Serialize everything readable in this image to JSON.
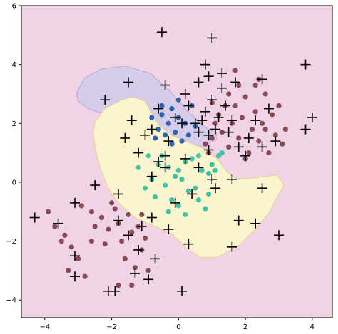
{
  "chart_data": {
    "type": "scatter",
    "title": "",
    "xlabel": "",
    "ylabel": "",
    "xlim": [
      -4.7,
      4.6
    ],
    "ylim": [
      -4.6,
      6.0
    ],
    "grid": false,
    "legend": "none",
    "x_ticks": [
      -4,
      -2,
      0,
      2,
      4
    ],
    "y_ticks": [
      -4,
      -2,
      0,
      2,
      4,
      6
    ],
    "x_tick_labels": [
      "−4",
      "−2",
      "0",
      "2",
      "4"
    ],
    "y_tick_labels": [
      "−4",
      "−2",
      "0",
      "2",
      "4",
      "6"
    ],
    "colors": {
      "background_region": "#f0d4e6",
      "purple_region": "#d6cdea",
      "yellow_region": "#fbf5cf",
      "maroon_points": "#8a4a56",
      "blue_points": "#2f63b0",
      "teal_points": "#3ec4a6",
      "cross_marker": "#000000"
    },
    "regions": [
      {
        "name": "purple-region",
        "polygon": [
          [
            -3.05,
            3.05
          ],
          [
            -2.8,
            3.55
          ],
          [
            -2.3,
            3.85
          ],
          [
            -1.6,
            3.95
          ],
          [
            -0.85,
            3.7
          ],
          [
            -0.3,
            3.15
          ],
          [
            0.2,
            2.5
          ],
          [
            0.75,
            1.9
          ],
          [
            1.15,
            1.65
          ],
          [
            1.15,
            1.45
          ],
          [
            0.75,
            1.25
          ],
          [
            0.3,
            1.1
          ],
          [
            -0.2,
            1.15
          ],
          [
            -0.65,
            1.4
          ],
          [
            -0.95,
            1.75
          ],
          [
            -1.3,
            2.05
          ],
          [
            -1.7,
            2.25
          ],
          [
            -2.2,
            2.3
          ],
          [
            -2.7,
            2.5
          ],
          [
            -3.0,
            2.75
          ]
        ]
      },
      {
        "name": "yellow-region",
        "polygon": [
          [
            -2.5,
            2.05
          ],
          [
            -2.2,
            2.5
          ],
          [
            -1.7,
            2.8
          ],
          [
            -1.35,
            2.9
          ],
          [
            -1.0,
            2.75
          ],
          [
            -0.8,
            2.35
          ],
          [
            -0.6,
            1.95
          ],
          [
            -0.2,
            1.6
          ],
          [
            0.3,
            1.35
          ],
          [
            0.75,
            1.15
          ],
          [
            1.15,
            0.8
          ],
          [
            1.45,
            0.35
          ],
          [
            1.75,
            0.1
          ],
          [
            2.3,
            0.15
          ],
          [
            2.95,
            0.25
          ],
          [
            3.15,
            -0.1
          ],
          [
            2.95,
            -0.5
          ],
          [
            2.7,
            -1.05
          ],
          [
            2.3,
            -1.6
          ],
          [
            1.8,
            -2.15
          ],
          [
            1.15,
            -2.55
          ],
          [
            0.65,
            -2.55
          ],
          [
            0.2,
            -2.2
          ],
          [
            -0.2,
            -1.75
          ],
          [
            -0.8,
            -1.45
          ],
          [
            -1.3,
            -1.2
          ],
          [
            -1.75,
            -0.75
          ],
          [
            -2.1,
            -0.2
          ],
          [
            -2.35,
            0.5
          ],
          [
            -2.5,
            1.2
          ],
          [
            -2.55,
            1.7
          ]
        ]
      }
    ],
    "series": [
      {
        "marker": "circle",
        "color": "#8a4a56",
        "points": [
          [
            -3.9,
            -1.0
          ],
          [
            -3.7,
            -1.5
          ],
          [
            -3.4,
            -1.8
          ],
          [
            -3.2,
            -2.2
          ],
          [
            -3.0,
            -2.6
          ],
          [
            -2.8,
            -3.2
          ],
          [
            -2.6,
            -2.0
          ],
          [
            -2.5,
            -1.5
          ],
          [
            -2.3,
            -1.2
          ],
          [
            -2.1,
            -1.6
          ],
          [
            -1.9,
            -0.9
          ],
          [
            -1.8,
            -1.4
          ],
          [
            -1.7,
            -2.0
          ],
          [
            -1.6,
            -2.6
          ],
          [
            -1.5,
            -1.1
          ],
          [
            -1.4,
            -1.7
          ],
          [
            -1.3,
            -2.9
          ],
          [
            -1.2,
            -1.5
          ],
          [
            -1.1,
            -2.3
          ],
          [
            -1.0,
            -1.9
          ],
          [
            -0.9,
            -3.0
          ],
          [
            -2.0,
            -0.7
          ],
          [
            -2.2,
            -2.1
          ],
          [
            -1.8,
            -3.5
          ],
          [
            -3.3,
            -3.0
          ],
          [
            -2.9,
            -0.8
          ],
          [
            -3.5,
            -2.0
          ],
          [
            -1.1,
            -1.1
          ],
          [
            -2.6,
            -1.0
          ],
          [
            -1.4,
            -3.5
          ],
          [
            0.9,
            1.0
          ],
          [
            1.0,
            1.5
          ],
          [
            1.1,
            2.0
          ],
          [
            1.2,
            2.3
          ],
          [
            1.3,
            1.7
          ],
          [
            1.4,
            2.6
          ],
          [
            1.5,
            1.2
          ],
          [
            1.6,
            2.0
          ],
          [
            1.7,
            2.6
          ],
          [
            1.8,
            1.5
          ],
          [
            1.9,
            2.2
          ],
          [
            2.0,
            2.9
          ],
          [
            2.1,
            1.0
          ],
          [
            2.2,
            1.8
          ],
          [
            2.3,
            2.4
          ],
          [
            2.4,
            1.4
          ],
          [
            2.5,
            2.0
          ],
          [
            2.6,
            3.0
          ],
          [
            2.7,
            1.0
          ],
          [
            2.8,
            2.3
          ],
          [
            2.9,
            1.6
          ],
          [
            3.0,
            2.6
          ],
          [
            2.3,
            3.3
          ],
          [
            1.5,
            3.0
          ],
          [
            1.8,
            3.3
          ],
          [
            2.0,
            0.8
          ],
          [
            1.2,
            0.9
          ],
          [
            0.8,
            1.3
          ],
          [
            2.6,
            1.8
          ],
          [
            3.2,
            1.8
          ],
          [
            1.0,
            2.7
          ],
          [
            1.7,
            3.8
          ],
          [
            2.4,
            3.5
          ],
          [
            3.1,
            1.3
          ]
        ]
      },
      {
        "marker": "circle",
        "color": "#2f63b0",
        "points": [
          [
            -0.8,
            2.2
          ],
          [
            -0.6,
            1.8
          ],
          [
            -0.5,
            2.3
          ],
          [
            -0.4,
            1.6
          ],
          [
            -0.3,
            2.0
          ],
          [
            -0.2,
            2.5
          ],
          [
            -0.1,
            1.7
          ],
          [
            0.0,
            2.2
          ],
          [
            0.1,
            1.4
          ],
          [
            0.2,
            2.0
          ],
          [
            0.3,
            1.6
          ],
          [
            0.4,
            2.6
          ],
          [
            -0.7,
            1.5
          ],
          [
            -0.2,
            1.3
          ],
          [
            0.0,
            2.8
          ],
          [
            -0.5,
            2.6
          ],
          [
            0.5,
            1.9
          ]
        ]
      },
      {
        "marker": "circle",
        "color": "#3ec4a6",
        "points": [
          [
            -1.2,
            0.5
          ],
          [
            -0.9,
            0.9
          ],
          [
            -0.8,
            0.1
          ],
          [
            -0.7,
            -0.5
          ],
          [
            -0.6,
            0.6
          ],
          [
            -0.5,
            0.9
          ],
          [
            -0.4,
            -0.1
          ],
          [
            -0.3,
            0.5
          ],
          [
            -0.2,
            -0.6
          ],
          [
            -0.1,
            0.2
          ],
          [
            0.0,
            -0.8
          ],
          [
            0.1,
            0.1
          ],
          [
            0.2,
            0.7
          ],
          [
            0.3,
            -0.3
          ],
          [
            0.4,
            0.8
          ],
          [
            0.5,
            -0.2
          ],
          [
            0.6,
            -0.6
          ],
          [
            0.7,
            0.4
          ],
          [
            0.8,
            -0.9
          ],
          [
            0.9,
            0.3
          ],
          [
            1.0,
            0.6
          ],
          [
            1.1,
            0.4
          ],
          [
            1.2,
            0.9
          ],
          [
            -0.3,
            -1.0
          ],
          [
            0.2,
            -1.1
          ],
          [
            1.3,
            1.0
          ],
          [
            0.6,
            0.9
          ],
          [
            -1.0,
            -0.2
          ],
          [
            0.0,
            0.4
          ],
          [
            0.9,
            -0.4
          ]
        ]
      },
      {
        "marker": "cross",
        "color": "#000000",
        "points": [
          [
            -0.5,
            5.1
          ],
          [
            1.0,
            4.9
          ],
          [
            3.8,
            4.0
          ],
          [
            -1.5,
            3.4
          ],
          [
            -2.2,
            2.8
          ],
          [
            -1.4,
            2.1
          ],
          [
            -1.6,
            1.5
          ],
          [
            -1.2,
            1.0
          ],
          [
            -1.0,
            1.6
          ],
          [
            -0.6,
            2.5
          ],
          [
            -0.8,
            1.8
          ],
          [
            -0.3,
            1.4
          ],
          [
            -0.1,
            2.2
          ],
          [
            0.1,
            2.0
          ],
          [
            0.3,
            2.6
          ],
          [
            0.5,
            2.0
          ],
          [
            0.6,
            1.7
          ],
          [
            0.7,
            2.1
          ],
          [
            0.8,
            2.4
          ],
          [
            0.9,
            1.6
          ],
          [
            1.0,
            2.8
          ],
          [
            1.1,
            1.8
          ],
          [
            1.2,
            2.2
          ],
          [
            1.3,
            3.2
          ],
          [
            1.4,
            2.6
          ],
          [
            1.5,
            1.7
          ],
          [
            1.6,
            2.1
          ],
          [
            1.7,
            3.4
          ],
          [
            1.8,
            1.2
          ],
          [
            2.0,
            0.9
          ],
          [
            2.1,
            1.5
          ],
          [
            2.3,
            2.1
          ],
          [
            2.5,
            1.2
          ],
          [
            2.7,
            2.5
          ],
          [
            2.9,
            1.4
          ],
          [
            3.8,
            1.8
          ],
          [
            4.0,
            2.2
          ],
          [
            0.8,
            4.0
          ],
          [
            0.9,
            3.6
          ],
          [
            0.6,
            3.4
          ],
          [
            -0.4,
            3.3
          ],
          [
            0.2,
            3.0
          ],
          [
            1.3,
            3.7
          ],
          [
            2.5,
            3.5
          ],
          [
            -0.6,
            0.7
          ],
          [
            -0.8,
            0.2
          ],
          [
            -0.4,
            0.5
          ],
          [
            0.2,
            0.8
          ],
          [
            0.6,
            0.5
          ],
          [
            1.0,
            0.1
          ],
          [
            1.6,
            0.1
          ],
          [
            -0.1,
            -0.7
          ],
          [
            0.4,
            -0.4
          ],
          [
            -0.3,
            -1.6
          ],
          [
            -0.8,
            -1.2
          ],
          [
            -1.5,
            -1.8
          ],
          [
            -1.1,
            -1.5
          ],
          [
            -1.2,
            -2.3
          ],
          [
            -1.3,
            -3.1
          ],
          [
            -0.7,
            -2.6
          ],
          [
            -0.9,
            -3.3
          ],
          [
            -1.9,
            -3.7
          ],
          [
            -2.1,
            -3.7
          ],
          [
            0.1,
            -3.7
          ],
          [
            -3.1,
            -3.2
          ],
          [
            -3.1,
            -2.5
          ],
          [
            -3.6,
            -1.4
          ],
          [
            -4.3,
            -1.2
          ],
          [
            -2.5,
            -0.1
          ],
          [
            -3.1,
            -0.7
          ],
          [
            -1.8,
            -1.3
          ],
          [
            -0.4,
            0.9
          ],
          [
            0.9,
            1.1
          ],
          [
            1.1,
            -0.2
          ],
          [
            2.3,
            -1.4
          ],
          [
            2.5,
            -0.2
          ],
          [
            1.6,
            -2.2
          ],
          [
            0.3,
            -2.1
          ],
          [
            3.0,
            -1.8
          ],
          [
            1.8,
            -1.3
          ],
          [
            -1.8,
            -0.4
          ]
        ]
      }
    ]
  }
}
